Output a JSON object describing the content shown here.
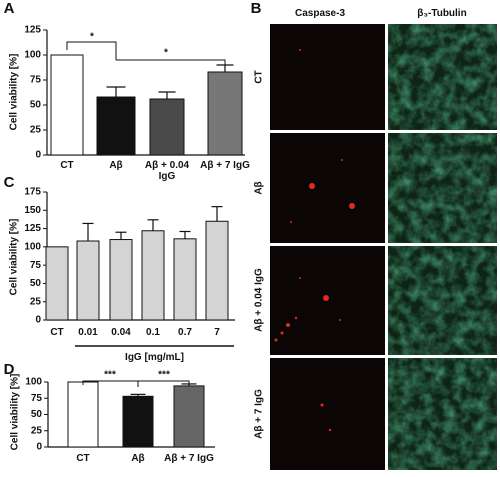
{
  "chart_data": [
    {
      "type": "bar",
      "label": "A",
      "ylabel": "Cell viability [%]",
      "categories": [
        "CT",
        "Aβ",
        "Aβ + 0.04 IgG",
        "Aβ + 7 IgG"
      ],
      "values": [
        100,
        58,
        56,
        83
      ],
      "errors": [
        null,
        10,
        7,
        7
      ],
      "colors": [
        "#ffffff",
        "#111111",
        "#4a4a4a",
        "#777777"
      ],
      "ylim": [
        0,
        125
      ],
      "yticks": [
        0,
        25,
        50,
        75,
        100,
        125
      ],
      "annotations": [
        "*",
        "*"
      ]
    },
    {
      "type": "bar",
      "label": "C",
      "ylabel": "Cell viability [%]",
      "xlabel": "IgG [mg/mL]",
      "categories": [
        "CT",
        "0.01",
        "0.04",
        "0.1",
        "0.7",
        "7"
      ],
      "values": [
        100,
        108,
        110,
        122,
        111,
        135
      ],
      "errors": [
        null,
        24,
        10,
        15,
        10,
        20
      ],
      "colors": [
        "#d4d4d4",
        "#d4d4d4",
        "#d4d4d4",
        "#d4d4d4",
        "#d4d4d4",
        "#d4d4d4"
      ],
      "ylim": [
        0,
        175
      ],
      "yticks": [
        0,
        25,
        50,
        75,
        100,
        125,
        150,
        175
      ]
    },
    {
      "type": "bar",
      "label": "D",
      "ylabel": "Cell viability [%]",
      "categories": [
        "CT",
        "Aβ",
        "Aβ + 7 IgG"
      ],
      "values": [
        100,
        78,
        94
      ],
      "errors": [
        null,
        3,
        3
      ],
      "colors": [
        "#ffffff",
        "#111111",
        "#666666"
      ],
      "ylim": [
        0,
        100
      ],
      "yticks": [
        0,
        25,
        50,
        75,
        100
      ],
      "annotations": [
        "***",
        "***"
      ]
    }
  ],
  "image_panel": {
    "label": "B",
    "columns": [
      "Caspase-3",
      "β₃-Tubulin"
    ],
    "rows": [
      "CT",
      "Aβ",
      "Aβ + 0.04 IgG",
      "Aβ + 7 IgG"
    ]
  }
}
